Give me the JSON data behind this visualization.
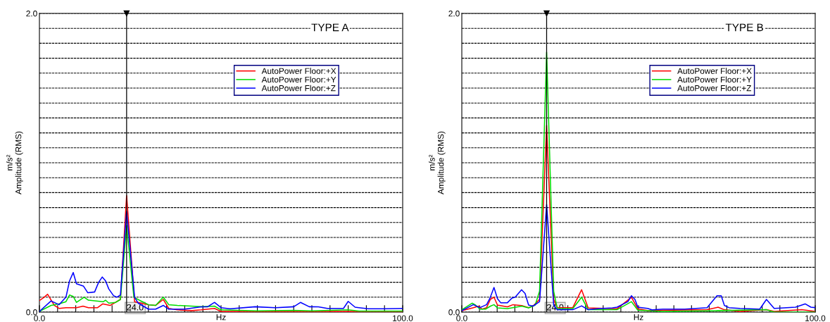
{
  "chart_data": [
    {
      "type": "line",
      "title": "TYPE A",
      "xlabel": "Hz",
      "ylabel": "m/s²\nAmplitude (RMS)",
      "xlim": [
        0,
        100
      ],
      "ylim": [
        0,
        2.0
      ],
      "xticks": [
        {
          "value": 0,
          "label": "0.0"
        },
        {
          "value": 5,
          "label": null
        },
        {
          "value": 10,
          "label": null
        },
        {
          "value": 15,
          "label": null
        },
        {
          "value": 20,
          "label": null
        },
        {
          "value": 25,
          "label": null
        },
        {
          "value": 30,
          "label": null
        },
        {
          "value": 35,
          "label": null
        },
        {
          "value": 40,
          "label": null
        },
        {
          "value": 45,
          "label": null
        },
        {
          "value": 50,
          "label": null
        },
        {
          "value": 55,
          "label": null
        },
        {
          "value": 60,
          "label": null
        },
        {
          "value": 65,
          "label": null
        },
        {
          "value": 70,
          "label": null
        },
        {
          "value": 75,
          "label": null
        },
        {
          "value": 80,
          "label": null
        },
        {
          "value": 85,
          "label": null
        },
        {
          "value": 90,
          "label": null
        },
        {
          "value": 95,
          "label": null
        },
        {
          "value": 100,
          "label": "100.0"
        }
      ],
      "yticks": [
        {
          "value": 0,
          "label": "0.0"
        },
        {
          "value": 0.1,
          "label": null
        },
        {
          "value": 0.2,
          "label": null
        },
        {
          "value": 0.3,
          "label": null
        },
        {
          "value": 0.4,
          "label": null
        },
        {
          "value": 0.5,
          "label": null
        },
        {
          "value": 0.6,
          "label": null
        },
        {
          "value": 0.7,
          "label": null
        },
        {
          "value": 0.8,
          "label": null
        },
        {
          "value": 0.9,
          "label": null
        },
        {
          "value": 1.0,
          "label": null
        },
        {
          "value": 1.1,
          "label": null
        },
        {
          "value": 1.2,
          "label": null
        },
        {
          "value": 1.3,
          "label": null
        },
        {
          "value": 1.4,
          "label": null
        },
        {
          "value": 1.5,
          "label": null
        },
        {
          "value": 1.6,
          "label": null
        },
        {
          "value": 1.7,
          "label": null
        },
        {
          "value": 1.8,
          "label": null
        },
        {
          "value": 1.9,
          "label": null
        },
        {
          "value": 2.0,
          "label": "2.0"
        }
      ],
      "grid": "y",
      "legend": "top right",
      "marker": "none",
      "line_style": "solid",
      "ref_lines": [
        {
          "axis": "x",
          "value": 24,
          "label": "24.0",
          "color": "#000000"
        }
      ],
      "series": [
        {
          "name": "AutoPower Floor:+X",
          "color": "#ff0000",
          "x": [
            0,
            1.3,
            2.25,
            4.1,
            5.4,
            7.3,
            10.2,
            12,
            13.5,
            16,
            17.4,
            19.5,
            22.3,
            24,
            26.2,
            27.9,
            30,
            32,
            34.1,
            35.6,
            38,
            42,
            44.5,
            48.2,
            50,
            60,
            70,
            80,
            90,
            100
          ],
          "values": [
            0.077,
            0.1,
            0.12,
            0.045,
            0.025,
            0.03,
            0.03,
            0.04,
            0.03,
            0.03,
            0.055,
            0.045,
            0.085,
            0.78,
            0.07,
            0.06,
            0.05,
            0.045,
            0.085,
            0.025,
            0.015,
            0.01,
            0.015,
            0.025,
            0.005,
            0.005,
            0.005,
            0.005,
            0.005,
            0.005
          ]
        },
        {
          "name": "AutoPower Floor:+Y",
          "color": "#00dd00",
          "x": [
            0,
            3.2,
            5.4,
            7.3,
            8.3,
            9.3,
            10.2,
            12.3,
            13.5,
            17.6,
            18.2,
            19.1,
            21,
            22.3,
            24,
            26,
            27.5,
            30,
            32,
            34.1,
            35.6,
            38,
            42,
            44.5,
            48.2,
            50,
            60,
            70,
            75,
            85,
            88,
            100
          ],
          "values": [
            0.005,
            0.045,
            0.055,
            0.07,
            0.115,
            0.105,
            0.065,
            0.1,
            0.08,
            0.07,
            0.08,
            0.06,
            0.065,
            0.085,
            0.58,
            0.1,
            0.08,
            0.05,
            0.045,
            0.1,
            0.05,
            0.045,
            0.04,
            0.036,
            0.04,
            0.015,
            0.008,
            0.012,
            0.008,
            0.015,
            0.007,
            0.007
          ]
        },
        {
          "name": "AutoPower Floor:+Z",
          "color": "#0000ff",
          "x": [
            0,
            3.2,
            5.4,
            7.3,
            8.3,
            9.3,
            10.2,
            12.1,
            13.3,
            15.2,
            16.3,
            17.3,
            18.2,
            19.1,
            20.4,
            21.3,
            22.3,
            24,
            26.2,
            27.2,
            30,
            32,
            34.1,
            35.6,
            40,
            44.5,
            46.3,
            48.2,
            50,
            52.5,
            59.4,
            65,
            70,
            71.9,
            74.3,
            76.8,
            79.3,
            83.7,
            85,
            86.9,
            90.6,
            94.4,
            100
          ],
          "values": [
            0.005,
            0.075,
            0.05,
            0.1,
            0.21,
            0.265,
            0.19,
            0.175,
            0.13,
            0.135,
            0.2,
            0.235,
            0.21,
            0.155,
            0.11,
            0.1,
            0.115,
            0.675,
            0.1,
            0.06,
            0.02,
            0.02,
            0.045,
            0.02,
            0.02,
            0.035,
            0.036,
            0.065,
            0.03,
            0.022,
            0.036,
            0.03,
            0.036,
            0.065,
            0.036,
            0.035,
            0.025,
            0.025,
            0.072,
            0.033,
            0.022,
            0.022,
            0.025
          ]
        }
      ]
    },
    {
      "type": "line",
      "title": "TYPE B",
      "xlabel": "Hz",
      "ylabel": "m/s²\nAmplitude (RMS)",
      "xlim": [
        0,
        100
      ],
      "ylim": [
        0,
        2.0
      ],
      "xticks": [
        {
          "value": 0,
          "label": "0.0"
        },
        {
          "value": 5,
          "label": null
        },
        {
          "value": 10,
          "label": null
        },
        {
          "value": 15,
          "label": null
        },
        {
          "value": 20,
          "label": null
        },
        {
          "value": 25,
          "label": null
        },
        {
          "value": 30,
          "label": null
        },
        {
          "value": 35,
          "label": null
        },
        {
          "value": 40,
          "label": null
        },
        {
          "value": 45,
          "label": null
        },
        {
          "value": 50,
          "label": null
        },
        {
          "value": 55,
          "label": null
        },
        {
          "value": 60,
          "label": null
        },
        {
          "value": 65,
          "label": null
        },
        {
          "value": 70,
          "label": null
        },
        {
          "value": 75,
          "label": null
        },
        {
          "value": 80,
          "label": null
        },
        {
          "value": 85,
          "label": null
        },
        {
          "value": 90,
          "label": null
        },
        {
          "value": 95,
          "label": null
        },
        {
          "value": 100,
          "label": "100.0"
        }
      ],
      "yticks": [
        {
          "value": 0,
          "label": "0.0"
        },
        {
          "value": 0.1,
          "label": null
        },
        {
          "value": 0.2,
          "label": null
        },
        {
          "value": 0.3,
          "label": null
        },
        {
          "value": 0.4,
          "label": null
        },
        {
          "value": 0.5,
          "label": null
        },
        {
          "value": 0.6,
          "label": null
        },
        {
          "value": 0.7,
          "label": null
        },
        {
          "value": 0.8,
          "label": null
        },
        {
          "value": 0.9,
          "label": null
        },
        {
          "value": 1.0,
          "label": null
        },
        {
          "value": 1.1,
          "label": null
        },
        {
          "value": 1.2,
          "label": null
        },
        {
          "value": 1.3,
          "label": null
        },
        {
          "value": 1.4,
          "label": null
        },
        {
          "value": 1.5,
          "label": null
        },
        {
          "value": 1.6,
          "label": null
        },
        {
          "value": 1.7,
          "label": null
        },
        {
          "value": 1.8,
          "label": null
        },
        {
          "value": 1.9,
          "label": null
        },
        {
          "value": 2.0,
          "label": "2.0"
        }
      ],
      "grid": "y",
      "legend": "top right",
      "marker": "none",
      "line_style": "solid",
      "ref_lines": [
        {
          "axis": "x",
          "value": 24,
          "label": "24.0",
          "color": "#000000"
        }
      ],
      "series": [
        {
          "name": "AutoPower Floor:+X",
          "color": "#ff0000",
          "x": [
            0,
            3.25,
            4.8,
            5.75,
            7,
            8.1,
            9.1,
            10.1,
            12.9,
            14.5,
            17,
            18.9,
            20.1,
            22,
            24,
            26,
            27,
            31.4,
            33.9,
            35.75,
            43.9,
            48,
            49.8,
            52.6,
            69.4,
            72.5,
            74.3,
            78.7,
            86.2,
            88.4,
            96.2,
            100
          ],
          "values": [
            0.01,
            0.03,
            0.04,
            0.02,
            0.03,
            0.086,
            0.1,
            0.047,
            0.035,
            0.05,
            0.044,
            0.03,
            0.04,
            0.086,
            1.25,
            0.086,
            0.03,
            0.03,
            0.15,
            0.028,
            0.022,
            0.1,
            0.022,
            0.011,
            0.016,
            0.033,
            0.016,
            0.005,
            0.016,
            0.005,
            0.016,
            0.005
          ]
        },
        {
          "name": "AutoPower Floor:+Y",
          "color": "#00dd00",
          "x": [
            0,
            2.9,
            3.9,
            5.1,
            6.7,
            8.1,
            9.1,
            10.1,
            12.9,
            17,
            18.9,
            20.75,
            22,
            24,
            26,
            27,
            31.4,
            33.9,
            35.75,
            43.9,
            48,
            49.8,
            56.9,
            72.5,
            86.2,
            88.4,
            100
          ],
          "values": [
            0.016,
            0.06,
            0.047,
            0.02,
            0.02,
            0.04,
            0.05,
            0.028,
            0.024,
            0.04,
            0.028,
            0.047,
            0.14,
            1.74,
            0.14,
            0.024,
            0.024,
            0.1,
            0.016,
            0.016,
            0.07,
            0.013,
            0.005,
            0.01,
            0.016,
            0.0,
            0.0
          ]
        },
        {
          "name": "AutoPower Floor:+Z",
          "color": "#0000ff",
          "x": [
            0,
            3.25,
            5.1,
            7,
            7.9,
            9.1,
            10.1,
            11,
            12.9,
            14.2,
            15.1,
            16.9,
            17.9,
            18.9,
            20.1,
            22,
            24,
            26,
            27,
            31.4,
            33.9,
            35.75,
            38.9,
            42.6,
            43.9,
            47,
            48,
            49,
            49.8,
            52.6,
            53.8,
            56.9,
            63.1,
            69.4,
            70.3,
            72.2,
            73.4,
            74.3,
            75.6,
            78.7,
            84.3,
            86.2,
            88.4,
            94.4,
            97.2,
            98.8,
            100
          ],
          "values": [
            0.01,
            0.05,
            0.03,
            0.05,
            0.09,
            0.165,
            0.09,
            0.063,
            0.063,
            0.094,
            0.1,
            0.15,
            0.125,
            0.047,
            0.04,
            0.07,
            0.72,
            0.047,
            0.016,
            0.016,
            0.042,
            0.016,
            0.024,
            0.028,
            0.033,
            0.07,
            0.11,
            0.085,
            0.033,
            0.025,
            0.015,
            0.02,
            0.02,
            0.03,
            0.055,
            0.11,
            0.11,
            0.045,
            0.03,
            0.025,
            0.02,
            0.085,
            0.025,
            0.033,
            0.055,
            0.033,
            0.03
          ]
        }
      ]
    }
  ]
}
